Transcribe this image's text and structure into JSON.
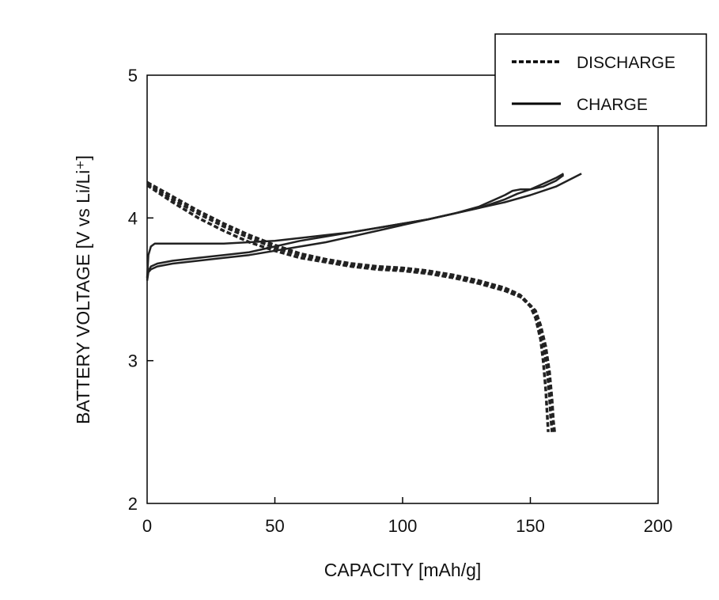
{
  "chart_data": {
    "type": "line",
    "xlabel": "CAPACITY [mAh/g]",
    "ylabel": "BATTERY VOLTAGE [V vs Li/Li⁺]",
    "xlim": [
      0,
      200
    ],
    "ylim": [
      2,
      5
    ],
    "xticks": [
      0,
      50,
      100,
      150,
      200
    ],
    "yticks": [
      2,
      3,
      4,
      5
    ],
    "grid": false,
    "legend_position": "top-right",
    "legend": [
      {
        "label": "DISCHARGE",
        "style": "dashed"
      },
      {
        "label": "CHARGE",
        "style": "solid"
      }
    ],
    "series": [
      {
        "group": "DISCHARGE",
        "style": "dashed",
        "x": [
          0,
          10,
          20,
          30,
          40,
          50,
          60,
          70,
          80,
          90,
          100,
          110,
          120,
          130,
          140,
          145,
          150,
          152,
          154,
          155,
          156,
          156.5,
          157
        ],
        "y": [
          4.25,
          4.15,
          4.05,
          3.96,
          3.88,
          3.81,
          3.75,
          3.71,
          3.68,
          3.66,
          3.65,
          3.63,
          3.6,
          3.56,
          3.51,
          3.47,
          3.38,
          3.3,
          3.15,
          3.0,
          2.8,
          2.65,
          2.5
        ]
      },
      {
        "group": "DISCHARGE",
        "style": "dashed",
        "x": [
          0,
          10,
          20,
          30,
          40,
          50,
          60,
          70,
          80,
          90,
          100,
          110,
          120,
          130,
          140,
          146,
          151,
          153,
          155,
          156.5,
          157.5,
          158,
          158.5
        ],
        "y": [
          4.24,
          4.13,
          4.03,
          3.94,
          3.86,
          3.79,
          3.74,
          3.7,
          3.67,
          3.65,
          3.64,
          3.62,
          3.59,
          3.55,
          3.5,
          3.46,
          3.37,
          3.28,
          3.12,
          2.95,
          2.75,
          2.6,
          2.5
        ]
      },
      {
        "group": "DISCHARGE",
        "style": "dashed",
        "x": [
          0,
          10,
          20,
          30,
          40,
          50,
          60,
          70,
          80,
          90,
          100,
          110,
          120,
          130,
          140,
          147,
          152,
          154,
          156,
          157.5,
          158.5,
          159,
          159.5
        ],
        "y": [
          4.23,
          4.11,
          4.0,
          3.91,
          3.83,
          3.77,
          3.72,
          3.69,
          3.66,
          3.64,
          3.63,
          3.61,
          3.58,
          3.54,
          3.49,
          3.44,
          3.35,
          3.25,
          3.1,
          2.92,
          2.72,
          2.58,
          2.5
        ]
      },
      {
        "group": "CHARGE",
        "style": "solid",
        "x": [
          0,
          0.5,
          1.5,
          3,
          10,
          20,
          30,
          40,
          50,
          60,
          70,
          80,
          90,
          100,
          110,
          120,
          130,
          140,
          143,
          146,
          150,
          155,
          160,
          163
        ],
        "y": [
          3.58,
          3.74,
          3.8,
          3.82,
          3.82,
          3.82,
          3.82,
          3.83,
          3.84,
          3.86,
          3.88,
          3.9,
          3.93,
          3.96,
          3.99,
          4.03,
          4.08,
          4.16,
          4.19,
          4.2,
          4.2,
          4.24,
          4.28,
          4.31
        ]
      },
      {
        "group": "CHARGE",
        "style": "solid",
        "x": [
          0,
          0.5,
          1.5,
          4,
          10,
          20,
          30,
          40,
          50,
          60,
          70,
          80,
          90,
          100,
          110,
          120,
          130,
          140,
          145,
          150,
          155,
          160,
          163
        ],
        "y": [
          3.57,
          3.63,
          3.66,
          3.68,
          3.7,
          3.72,
          3.74,
          3.76,
          3.8,
          3.84,
          3.87,
          3.9,
          3.93,
          3.96,
          3.99,
          4.03,
          4.07,
          4.13,
          4.17,
          4.2,
          4.22,
          4.26,
          4.3
        ]
      },
      {
        "group": "CHARGE",
        "style": "solid",
        "x": [
          0,
          0.5,
          1.5,
          4,
          10,
          20,
          30,
          40,
          50,
          60,
          70,
          80,
          90,
          100,
          110,
          120,
          130,
          140,
          150,
          160,
          170
        ],
        "y": [
          3.56,
          3.62,
          3.64,
          3.66,
          3.68,
          3.7,
          3.72,
          3.74,
          3.77,
          3.8,
          3.83,
          3.87,
          3.91,
          3.95,
          3.99,
          4.03,
          4.07,
          4.11,
          4.16,
          4.22,
          4.31
        ]
      }
    ]
  }
}
